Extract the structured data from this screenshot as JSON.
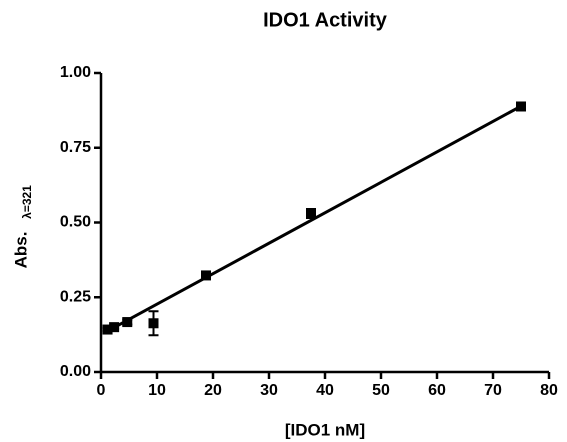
{
  "chart_data": {
    "type": "scatter",
    "title": "IDO1 Activity",
    "x_label": "[IDO1 nM]",
    "y_label": "Abs.",
    "y_label_subscript": "λ=321",
    "series": [
      {
        "type": "scatter",
        "color": "#000000",
        "x": [
          1.17,
          2.34,
          4.69,
          9.375,
          18.75,
          37.5,
          75
        ],
        "values": [
          0.142,
          0.15,
          0.167,
          0.163,
          0.323,
          0.53,
          0.888
        ],
        "errors": [
          0.005,
          0.005,
          0.008,
          0.04,
          0.008,
          0.015,
          0.007
        ]
      },
      {
        "type": "line",
        "color": "#000000",
        "x": [
          1.17,
          75
        ],
        "values": [
          0.137,
          0.889
        ]
      }
    ],
    "xlim": [
      0,
      80
    ],
    "xticks": [
      0,
      10,
      20,
      30,
      40,
      50,
      60,
      70,
      80
    ],
    "ylim": [
      0,
      1
    ],
    "yticks": [
      {
        "value": 0,
        "label": "0.00"
      },
      {
        "value": 0.25,
        "label": "0.25"
      },
      {
        "value": 0.5,
        "label": "0.50"
      },
      {
        "value": 0.75,
        "label": "0.75"
      },
      {
        "value": 1,
        "label": "1.00"
      }
    ]
  }
}
